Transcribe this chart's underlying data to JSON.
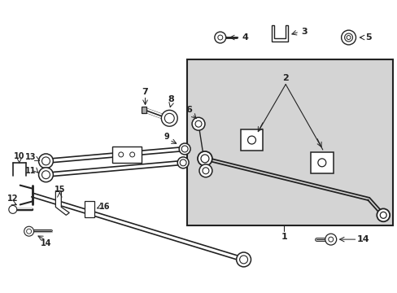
{
  "bg_color": "#ffffff",
  "box_bg": "#d8d8d8",
  "line_color": "#222222",
  "label_color": "#111111",
  "figsize": [
    4.89,
    3.6
  ],
  "dpi": 100
}
